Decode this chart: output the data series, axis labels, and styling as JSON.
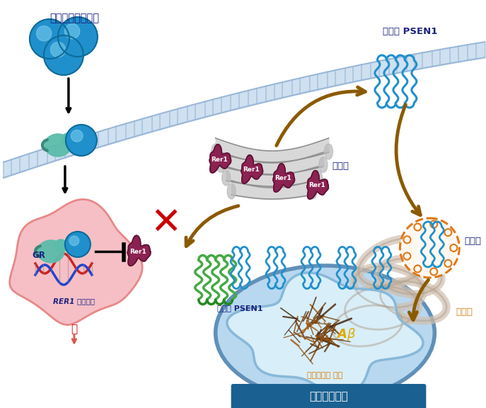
{
  "labels": {
    "glucocorticoid": "당질코르티코이드",
    "cleaved_psen1": "절단된 PSEN1",
    "golgi": "골지체",
    "endosome": "엔도솜",
    "er": "소포체",
    "rer1_promoter": "RER1 프로모터",
    "nucleus_label": "핵",
    "intact_psen1": "온전한 PSEN1",
    "amyloid_beta": "아밀로이드 베타",
    "mitochondria": "미토콘드리아",
    "ab_symbol": "Aβ",
    "rer1": "Rer1",
    "gr": "GR"
  },
  "colors": {
    "blue_ball": "#2090cc",
    "blue_ball_dark": "#0e6b99",
    "blue_ball_highlight": "#80d0ee",
    "membrane_fill": "#cfe0f0",
    "membrane_line": "#9ab8d8",
    "teal_receptor": "#5bbcaa",
    "teal_dark": "#3a8878",
    "nucleus_fill": "#f5b8c0",
    "nucleus_border": "#e88888",
    "dna_red": "#cc2222",
    "dna_blue": "#2244cc",
    "rer1_fill": "#8b2252",
    "rer1_border": "#5b1232",
    "golgi_fill": "#d8d8d8",
    "golgi_border": "#909090",
    "golgi_dark": "#b8b8b8",
    "arrow_brown": "#8B5A00",
    "red_x": "#cc0000",
    "mito_outer": "#6090b8",
    "mito_mid": "#88b8d8",
    "mito_inner": "#b8d8f0",
    "mito_light": "#d8eef8",
    "amyloid_dark": "#5a3a10",
    "amyloid_mid": "#8a5a20",
    "er_color": "#d0c0b0",
    "er_border": "#b0a090",
    "endosome_orange": "#e07818",
    "green_psen1": "#44aa44",
    "green_dark": "#228822",
    "white": "#ffffff",
    "black": "#000000",
    "title_dark": "#1a237e",
    "orange_text": "#dd7700",
    "yellow_text": "#ddaa00",
    "blue_banner": "#1a6090"
  }
}
